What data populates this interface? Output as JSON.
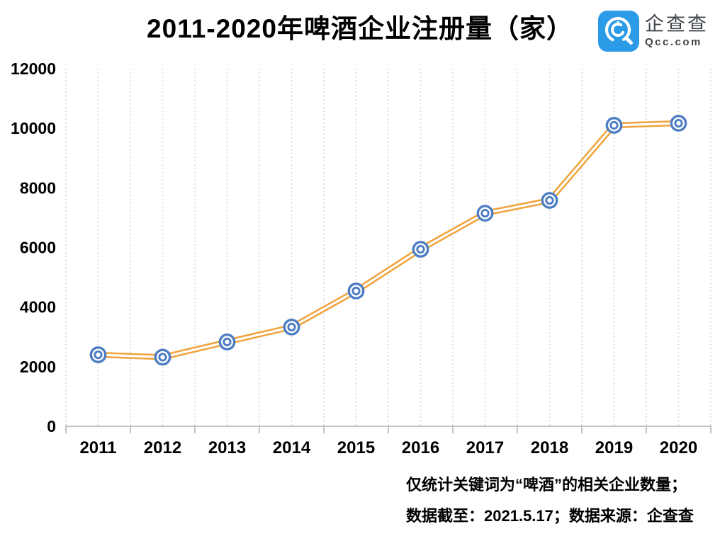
{
  "header": {
    "title": "2011-2020年啤酒企业注册量（家）"
  },
  "logo": {
    "name": "企查查",
    "domain": "Qcc.com",
    "brand_color": "#2b9be8",
    "text_color": "#3f444a",
    "icon": "qcc-magnifier-icon"
  },
  "chart_data": {
    "type": "line",
    "title": "2011-2020年啤酒企业注册量（家）",
    "categories": [
      "2011",
      "2012",
      "2013",
      "2014",
      "2015",
      "2016",
      "2017",
      "2018",
      "2019",
      "2020"
    ],
    "series": [
      {
        "name": "啤酒企业注册量",
        "values": [
          2400,
          2320,
          2830,
          3330,
          4540,
          5940,
          7150,
          7580,
          10100,
          10170
        ]
      }
    ],
    "xlabel": "",
    "ylabel": "",
    "ylim": [
      0,
      12000
    ],
    "ytick_interval": 2000,
    "y_ticks": [
      0,
      2000,
      4000,
      6000,
      8000,
      10000,
      12000
    ],
    "grid": "vertical-dotted-half-category",
    "legend": "none",
    "line_style": "double-stripe",
    "marker_style": "double-circle",
    "line_color": "#f0a33c",
    "marker_color": "#4e7dc3",
    "gridline_color": "#d4d4d4",
    "axis_color": "#c3c3c3"
  },
  "footer": {
    "note1": "仅统计关键词为“啤酒”的相关企业数量；",
    "note2": "数据截至：2021.5.17；数据来源：企查查"
  }
}
